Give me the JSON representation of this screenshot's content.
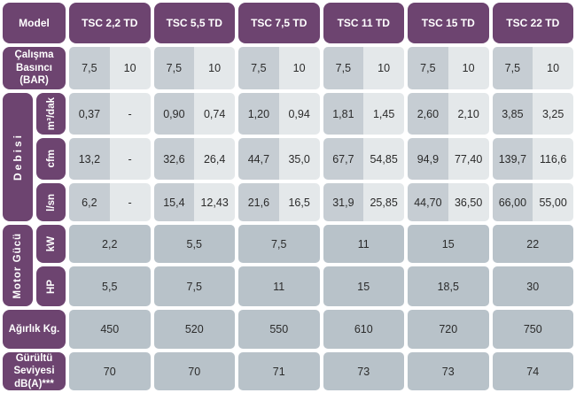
{
  "colors": {
    "purple": "#6d4470",
    "cell-dark": "#c6cdd3",
    "cell-light": "#e4e8ea",
    "cell-mid": "#b8c2c9",
    "text-dark": "#2b2b2b"
  },
  "table": {
    "corner_label": "Model",
    "models": [
      "TSC 2,2 TD",
      "TSC 5,5 TD",
      "TSC 7,5 TD",
      "TSC 11 TD",
      "TSC 15 TD",
      "TSC 22 TD"
    ],
    "pressure_row": {
      "label": "Çalışma Basıncı (BAR)",
      "pairs": [
        [
          "7,5",
          "10"
        ],
        [
          "7,5",
          "10"
        ],
        [
          "7,5",
          "10"
        ],
        [
          "7,5",
          "10"
        ],
        [
          "7,5",
          "10"
        ],
        [
          "7,5",
          "10"
        ]
      ]
    },
    "flow_section": {
      "label": "Debisi",
      "rows": [
        {
          "unit": "m³/dak",
          "pairs": [
            [
              "0,37",
              "-"
            ],
            [
              "0,90",
              "0,74"
            ],
            [
              "1,20",
              "0,94"
            ],
            [
              "1,81",
              "1,45"
            ],
            [
              "2,60",
              "2,10"
            ],
            [
              "3,85",
              "3,25"
            ]
          ]
        },
        {
          "unit": "cfm",
          "pairs": [
            [
              "13,2",
              "-"
            ],
            [
              "32,6",
              "26,4"
            ],
            [
              "44,7",
              "35,0"
            ],
            [
              "67,7",
              "54,85"
            ],
            [
              "94,9",
              "77,40"
            ],
            [
              "139,7",
              "116,6"
            ]
          ]
        },
        {
          "unit": "l/sn",
          "pairs": [
            [
              "6,2",
              "-"
            ],
            [
              "15,4",
              "12,43"
            ],
            [
              "21,6",
              "16,5"
            ],
            [
              "31,9",
              "25,85"
            ],
            [
              "44,70",
              "36,50"
            ],
            [
              "66,00",
              "55,00"
            ]
          ]
        }
      ]
    },
    "motor_section": {
      "label": "Motor Gücü",
      "rows": [
        {
          "unit": "kW",
          "values": [
            "2,2",
            "5,5",
            "7,5",
            "11",
            "15",
            "22"
          ]
        },
        {
          "unit": "HP",
          "values": [
            "5,5",
            "7,5",
            "11",
            "15",
            "18,5",
            "30"
          ]
        }
      ]
    },
    "weight_row": {
      "label": "Ağırlık Kg.",
      "values": [
        "450",
        "520",
        "550",
        "610",
        "720",
        "750"
      ]
    },
    "noise_row": {
      "label": "Gürültü Seviyesi dB(A)***",
      "values": [
        "70",
        "70",
        "71",
        "73",
        "73",
        "74"
      ]
    }
  }
}
